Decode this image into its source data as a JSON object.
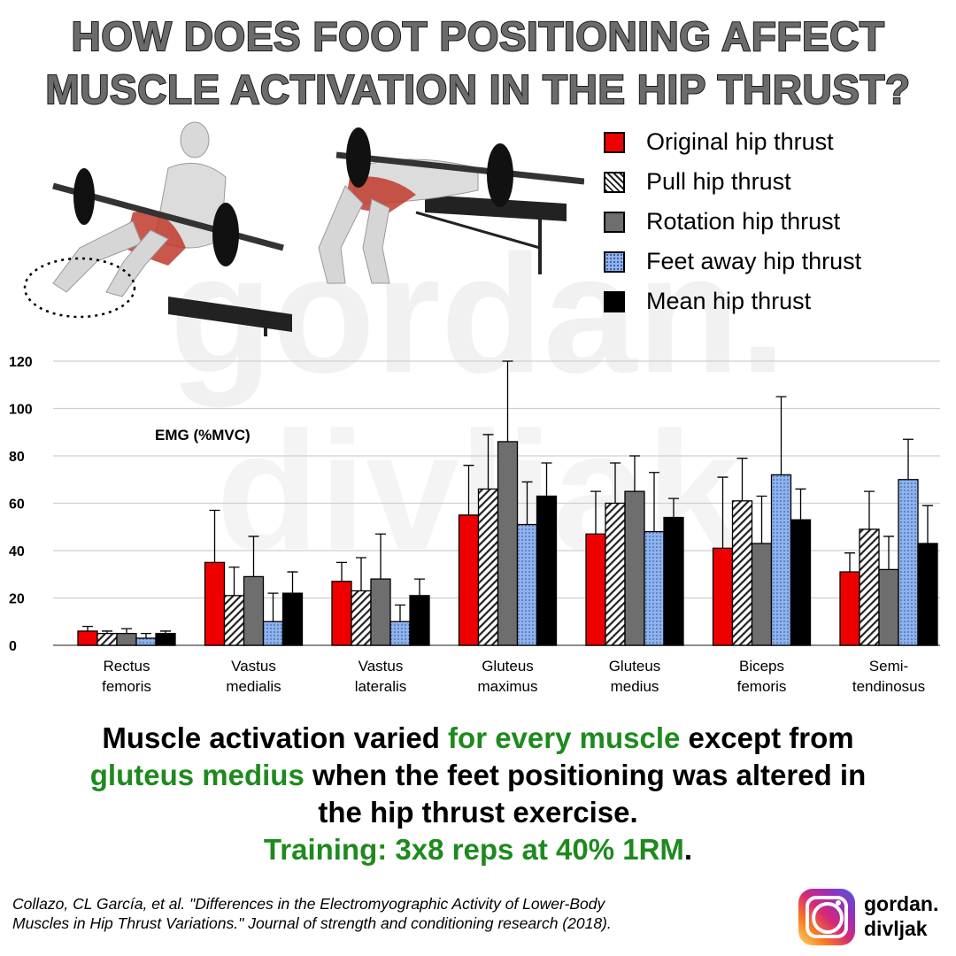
{
  "title": {
    "line1": "HOW DOES FOOT POSITIONING AFFECT",
    "line2": "MUSCLE ACTIVATION IN THE HIP THRUST?"
  },
  "watermark": {
    "line1": "gordan.",
    "line2": "divljak"
  },
  "legend": [
    {
      "label": "Original hip thrust",
      "pattern": "solid-red"
    },
    {
      "label": "Pull hip thrust",
      "pattern": "hatched"
    },
    {
      "label": "Rotation hip thrust",
      "pattern": "solid-gray"
    },
    {
      "label": "Feet away hip thrust",
      "pattern": "dotted-blue"
    },
    {
      "label": "Mean hip thrust",
      "pattern": "solid-black"
    }
  ],
  "chart_data": {
    "type": "bar",
    "ylabel": "EMG (%MVC)",
    "ylim": [
      0,
      120
    ],
    "yticks": [
      0,
      20,
      40,
      60,
      80,
      100,
      120
    ],
    "grid": true,
    "error_bars": true,
    "categories": [
      [
        "Rectus",
        "femoris"
      ],
      [
        "Vastus",
        "medialis"
      ],
      [
        "Vastus",
        "lateralis"
      ],
      [
        "Gluteus",
        "maximus"
      ],
      [
        "Gluteus",
        "medius"
      ],
      [
        "Biceps",
        "femoris"
      ],
      [
        "Semi-",
        "tendinosus"
      ]
    ],
    "series": [
      {
        "name": "Original hip thrust",
        "color": "#ee0000",
        "values": [
          6,
          35,
          27,
          55,
          47,
          41,
          31
        ],
        "error_top": [
          8,
          57,
          35,
          76,
          65,
          71,
          39
        ]
      },
      {
        "name": "Pull hip thrust",
        "color": "#ffffff",
        "values": [
          5,
          21,
          23,
          66,
          60,
          61,
          49
        ],
        "error_top": [
          6,
          33,
          37,
          89,
          77,
          79,
          65
        ]
      },
      {
        "name": "Rotation hip thrust",
        "color": "#6e6e6e",
        "values": [
          5,
          29,
          28,
          86,
          65,
          43,
          32
        ],
        "error_top": [
          7,
          46,
          47,
          120,
          80,
          63,
          46
        ]
      },
      {
        "name": "Feet away hip thrust",
        "color": "#8fb3ee",
        "values": [
          3,
          10,
          10,
          51,
          48,
          72,
          70
        ],
        "error_top": [
          5,
          22,
          17,
          69,
          73,
          105,
          87
        ]
      },
      {
        "name": "Mean hip thrust",
        "color": "#000000",
        "values": [
          5,
          22,
          21,
          63,
          54,
          53,
          43
        ],
        "error_top": [
          6,
          31,
          28,
          77,
          62,
          66,
          59
        ]
      }
    ]
  },
  "conclusion": {
    "l1_a": "Muscle activation varied ",
    "l1_b": "for every muscle",
    "l1_c": " except from",
    "l2_a": "gluteus medius",
    "l2_b": " when the feet positioning was altered in",
    "l3": "the hip thrust exercise.",
    "l4_a": "Training: 3x8 reps at 40% 1RM",
    "l4_b": "."
  },
  "citation": {
    "line1": "Collazo, CL García, et al. \"Differences in the Electromyographic Activity of Lower-Body",
    "line2": "Muscles in Hip Thrust Variations.\" Journal of strength and conditioning research (2018)."
  },
  "handle": {
    "line1": "gordan.",
    "line2": "divljak",
    "icon": "instagram-icon"
  }
}
